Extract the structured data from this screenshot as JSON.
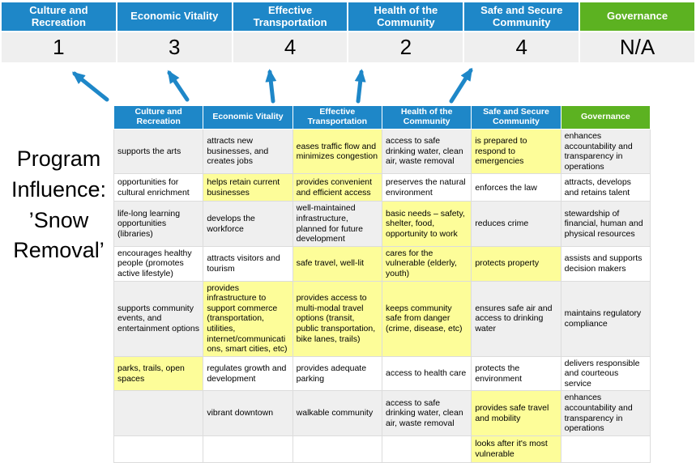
{
  "title": {
    "text": "Program Influence: ’Snow Removal’"
  },
  "colors": {
    "blue": "#1e87c8",
    "green": "#5cb221",
    "highlight": "#fdfd99",
    "band": "#efefef"
  },
  "scoreboard": {
    "columns": [
      {
        "label": "Culture and Recreation",
        "score": "1",
        "color": "blue"
      },
      {
        "label": "Economic Vitality",
        "score": "3",
        "color": "blue"
      },
      {
        "label": "Effective Transportation",
        "score": "4",
        "color": "blue"
      },
      {
        "label": "Health of the Community",
        "score": "2",
        "color": "blue"
      },
      {
        "label": "Safe and Secure Community",
        "score": "4",
        "color": "blue"
      },
      {
        "label": "Governance",
        "score": "N/A",
        "color": "green"
      }
    ]
  },
  "matrix": {
    "headers": [
      {
        "label": "Culture and Recreation",
        "color": "blue"
      },
      {
        "label": "Economic Vitality",
        "color": "blue"
      },
      {
        "label": "Effective Transportation",
        "color": "blue"
      },
      {
        "label": "Health of the Community",
        "color": "blue"
      },
      {
        "label": "Safe and Secure Community",
        "color": "green2",
        "color2": "blue"
      },
      {
        "label": "Governance",
        "color": "green"
      }
    ],
    "rows": [
      [
        {
          "text": "supports the arts",
          "highlight": false
        },
        {
          "text": "attracts new businesses, and creates jobs",
          "highlight": false
        },
        {
          "text": "eases traffic flow and minimizes congestion",
          "highlight": true
        },
        {
          "text": "access to safe drinking water, clean air, waste removal",
          "highlight": false
        },
        {
          "text": "is prepared to respond to emergencies",
          "highlight": true
        },
        {
          "text": "enhances accountability and transparency in operations",
          "highlight": false
        }
      ],
      [
        {
          "text": "opportunities for cultural enrichment",
          "highlight": false
        },
        {
          "text": "helps retain current businesses",
          "highlight": true
        },
        {
          "text": "provides convenient and efficient access",
          "highlight": true
        },
        {
          "text": "preserves the natural environment",
          "highlight": false
        },
        {
          "text": "enforces the law",
          "highlight": false
        },
        {
          "text": "attracts, develops and retains talent",
          "highlight": false
        }
      ],
      [
        {
          "text": "life-long learning opportunities (libraries)",
          "highlight": false
        },
        {
          "text": "develops the workforce",
          "highlight": false
        },
        {
          "text": "well-maintained infrastructure, planned for future development",
          "highlight": false
        },
        {
          "text": "basic needs – safety, shelter, food, opportunity to work",
          "highlight": true
        },
        {
          "text": "reduces crime",
          "highlight": false
        },
        {
          "text": "stewardship of financial, human and physical resources",
          "highlight": false
        }
      ],
      [
        {
          "text": "encourages healthy people (promotes active lifestyle)",
          "highlight": false
        },
        {
          "text": "attracts visitors and tourism",
          "highlight": false
        },
        {
          "text": "safe travel, well-lit",
          "highlight": true
        },
        {
          "text": "cares for the vulnerable (elderly, youth)",
          "highlight": true
        },
        {
          "text": "protects property",
          "highlight": true
        },
        {
          "text": "assists and supports decision makers",
          "highlight": false
        }
      ],
      [
        {
          "text": "supports community events, and entertainment options",
          "highlight": false
        },
        {
          "text": "provides infrastructure to support commerce (transportation, utilities, internet/communications, smart cities, etc)",
          "highlight": true
        },
        {
          "text": "provides access to multi-modal travel options (transit, public transportation, bike lanes, trails)",
          "highlight": true
        },
        {
          "text": "keeps community safe from danger (crime, disease, etc)",
          "highlight": true
        },
        {
          "text": "ensures safe air and access to drinking water",
          "highlight": false
        },
        {
          "text": "maintains regulatory compliance",
          "highlight": false
        }
      ],
      [
        {
          "text": "parks, trails, open spaces",
          "highlight": true
        },
        {
          "text": "regulates growth and development",
          "highlight": false
        },
        {
          "text": "provides adequate parking",
          "highlight": false
        },
        {
          "text": "access to health care",
          "highlight": false
        },
        {
          "text": "protects the environment",
          "highlight": false
        },
        {
          "text": "delivers responsible and courteous service",
          "highlight": false
        }
      ],
      [
        {
          "text": "",
          "highlight": false
        },
        {
          "text": "vibrant downtown",
          "highlight": false
        },
        {
          "text": "walkable community",
          "highlight": false
        },
        {
          "text": "access to safe drinking water, clean air, waste removal",
          "highlight": false
        },
        {
          "text": "provides safe travel and mobility",
          "highlight": true
        },
        {
          "text": "enhances accountability and transparency in operations",
          "highlight": false
        }
      ],
      [
        {
          "text": "",
          "highlight": false
        },
        {
          "text": "",
          "highlight": false
        },
        {
          "text": "",
          "highlight": false
        },
        {
          "text": "",
          "highlight": false
        },
        {
          "text": "looks after it's most vulnerable",
          "highlight": true
        },
        {
          "text": "",
          "highlight": false
        }
      ]
    ]
  }
}
